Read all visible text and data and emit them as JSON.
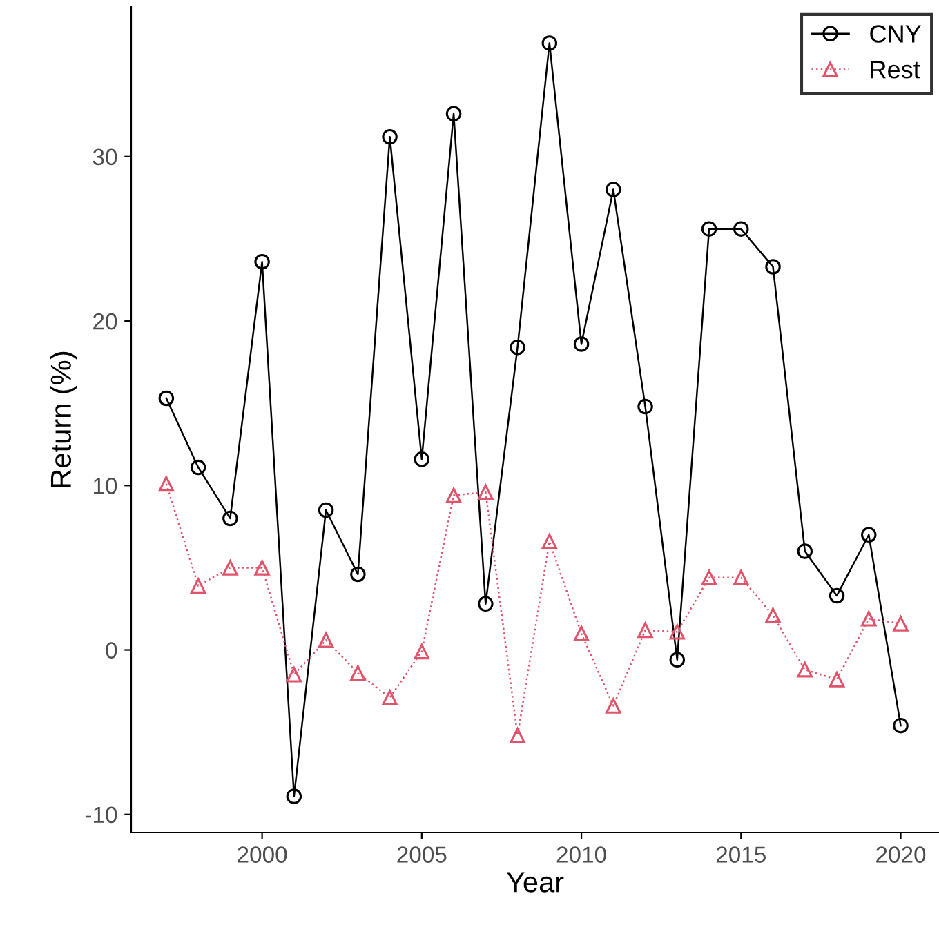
{
  "chart_data": {
    "type": "line",
    "xlabel": "Year",
    "ylabel": "Return (%)",
    "x": [
      1997,
      1998,
      1999,
      2000,
      2001,
      2002,
      2003,
      2004,
      2005,
      2006,
      2007,
      2008,
      2009,
      2010,
      2011,
      2012,
      2013,
      2014,
      2015,
      2016,
      2017,
      2018,
      2019,
      2020
    ],
    "series": [
      {
        "name": "CNY",
        "color": "#000000",
        "marker": "circle",
        "line_style": "solid",
        "values": [
          15.3,
          11.1,
          8.0,
          23.6,
          -8.9,
          8.5,
          4.6,
          31.2,
          11.6,
          32.6,
          2.8,
          18.4,
          36.9,
          18.6,
          28.0,
          14.8,
          -0.6,
          25.6,
          25.6,
          23.3,
          6.0,
          3.3,
          7.0,
          -4.6
        ]
      },
      {
        "name": "Rest",
        "color": "#df536b",
        "marker": "triangle",
        "line_style": "dotted",
        "values": [
          10.1,
          3.9,
          5.0,
          5.0,
          -1.5,
          0.6,
          -1.4,
          -2.9,
          -0.1,
          9.4,
          9.6,
          -5.2,
          6.6,
          1.0,
          -3.4,
          1.2,
          1.1,
          4.4,
          4.4,
          2.1,
          -1.2,
          -1.8,
          1.9,
          1.6
        ]
      }
    ],
    "xlim": [
      1995.9,
      2021.2
    ],
    "ylim": [
      -11.1,
      39.1
    ],
    "xticks": [
      2000,
      2005,
      2010,
      2015,
      2020
    ],
    "yticks": [
      -10,
      0,
      10,
      20,
      30
    ],
    "grid": false,
    "legend": "top right"
  }
}
